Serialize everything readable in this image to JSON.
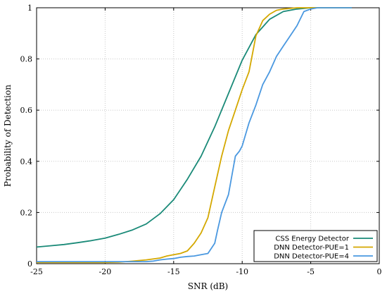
{
  "chart_data": {
    "type": "line",
    "title": "",
    "xlabel": "SNR (dB)",
    "ylabel": "Probability of Detection",
    "xlim": [
      -25,
      0
    ],
    "ylim": [
      0,
      1
    ],
    "x_ticks": [
      "-25",
      "-20",
      "-15",
      "-10",
      "-5",
      "0"
    ],
    "y_ticks": [
      "0",
      "0.2",
      "0.4",
      "0.6",
      "0.8",
      "1"
    ],
    "grid": true,
    "legend_position": "bottom-right",
    "series": [
      {
        "name": "CSS Energy Detector",
        "color": "#1a8a78",
        "x": [
          -25,
          -24,
          -23,
          -22,
          -21,
          -20,
          -19,
          -18,
          -17,
          -16,
          -15,
          -14,
          -13,
          -12,
          -11,
          -10,
          -9,
          -8,
          -7,
          -6,
          -5,
          -4,
          -3,
          -2
        ],
        "y": [
          0.065,
          0.07,
          0.075,
          0.082,
          0.09,
          0.1,
          0.115,
          0.132,
          0.155,
          0.195,
          0.25,
          0.33,
          0.42,
          0.535,
          0.665,
          0.795,
          0.895,
          0.955,
          0.985,
          0.995,
          1.0,
          1.0,
          1.0,
          1.0
        ]
      },
      {
        "name": "DNN Detector-PUE=1",
        "color": "#d4a800",
        "x": [
          -25,
          -24,
          -23,
          -22,
          -21,
          -20,
          -19,
          -18.5,
          -18,
          -17,
          -16,
          -15.5,
          -15,
          -14.5,
          -14,
          -13.5,
          -13,
          -12.5,
          -12,
          -11.5,
          -11,
          -10.5,
          -10,
          -9.5,
          -9,
          -8.5,
          -8,
          -7.5,
          -7,
          -6,
          -5,
          -4,
          -3,
          -2
        ],
        "y": [
          0.005,
          0.005,
          0.005,
          0.005,
          0.005,
          0.005,
          0.006,
          0.008,
          0.01,
          0.015,
          0.022,
          0.03,
          0.035,
          0.04,
          0.05,
          0.08,
          0.12,
          0.18,
          0.3,
          0.42,
          0.52,
          0.6,
          0.68,
          0.75,
          0.89,
          0.95,
          0.975,
          0.99,
          0.995,
          1.0,
          1.0,
          1.0,
          1.0,
          1.0
        ]
      },
      {
        "name": "DNN Detector-PUE=4",
        "color": "#4a98e0",
        "x": [
          -25,
          -24,
          -23,
          -22,
          -21,
          -20,
          -19,
          -18,
          -17,
          -16.5,
          -16,
          -15.5,
          -15,
          -14.5,
          -14,
          -13.5,
          -13,
          -12.5,
          -12,
          -11.8,
          -11.5,
          -11,
          -10.5,
          -10.2,
          -10,
          -9.5,
          -9,
          -8.5,
          -8,
          -7.5,
          -7,
          -6.5,
          -6,
          -5.5,
          -5,
          -4.5,
          -4,
          -3,
          -2
        ],
        "y": [
          0.008,
          0.008,
          0.008,
          0.008,
          0.008,
          0.008,
          0.008,
          0.008,
          0.008,
          0.01,
          0.015,
          0.018,
          0.02,
          0.025,
          0.028,
          0.03,
          0.035,
          0.04,
          0.08,
          0.13,
          0.2,
          0.27,
          0.42,
          0.44,
          0.46,
          0.55,
          0.62,
          0.7,
          0.75,
          0.81,
          0.85,
          0.89,
          0.93,
          0.985,
          0.995,
          1.0,
          1.0,
          1.0,
          1.0
        ]
      }
    ]
  }
}
